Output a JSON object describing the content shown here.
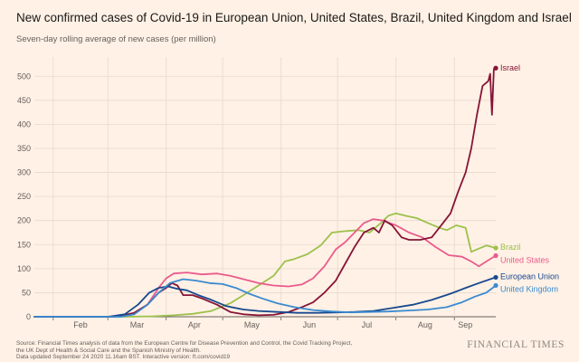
{
  "title": "New confirmed cases of Covid-19 in European Union, United States, Brazil, United Kingdom and Israel",
  "subtitle": "Seven-day rolling average of new cases (per million)",
  "footer": {
    "source": "Source: Financial Times analysis of data from the European Centre for Disease Prevention and Control, the Covid Tracking Project,",
    "source2": "the UK Dept of Health & Social Care and the Spanish Ministry of Health.",
    "updated": "Data updated September 24 2020 11.16am BST. Interactive version: ft.com/covid19"
  },
  "brand": "FINANCIAL TIMES",
  "chart_data": {
    "type": "line",
    "title": "New confirmed cases of Covid-19 in European Union, United States, Brazil, United Kingdom and Israel",
    "subtitle": "Seven-day rolling average of new cases (per million)",
    "x_ticks": [
      "Feb",
      "Mar",
      "Apr",
      "May",
      "Jun",
      "Jul",
      "Aug",
      "Sep"
    ],
    "y_ticks": [
      0,
      50,
      100,
      150,
      200,
      250,
      300,
      350,
      400,
      450,
      500
    ],
    "ylim": [
      0,
      540
    ],
    "xlim": [
      "2020-01-22",
      "2020-09-23"
    ],
    "grid": true,
    "legend": "inline-right",
    "series": [
      {
        "name": "Brazil",
        "color": "#9cc14b",
        "points": [
          [
            "2020-01-22",
            0
          ],
          [
            "2020-03-10",
            0
          ],
          [
            "2020-03-25",
            1
          ],
          [
            "2020-04-05",
            3
          ],
          [
            "2020-04-15",
            6
          ],
          [
            "2020-04-25",
            12
          ],
          [
            "2020-05-05",
            28
          ],
          [
            "2020-05-12",
            45
          ],
          [
            "2020-05-20",
            65
          ],
          [
            "2020-05-28",
            85
          ],
          [
            "2020-06-03",
            115
          ],
          [
            "2020-06-08",
            120
          ],
          [
            "2020-06-15",
            130
          ],
          [
            "2020-06-22",
            148
          ],
          [
            "2020-06-28",
            175
          ],
          [
            "2020-07-05",
            178
          ],
          [
            "2020-07-12",
            180
          ],
          [
            "2020-07-18",
            175
          ],
          [
            "2020-07-24",
            195
          ],
          [
            "2020-07-28",
            210
          ],
          [
            "2020-08-01",
            215
          ],
          [
            "2020-08-06",
            210
          ],
          [
            "2020-08-12",
            205
          ],
          [
            "2020-08-18",
            195
          ],
          [
            "2020-08-24",
            185
          ],
          [
            "2020-08-28",
            180
          ],
          [
            "2020-09-02",
            190
          ],
          [
            "2020-09-07",
            185
          ],
          [
            "2020-09-10",
            135
          ],
          [
            "2020-09-13",
            140
          ],
          [
            "2020-09-18",
            148
          ],
          [
            "2020-09-23",
            143
          ]
        ]
      },
      {
        "name": "United States",
        "color": "#ea5b8c",
        "points": [
          [
            "2020-01-22",
            0
          ],
          [
            "2020-03-05",
            0
          ],
          [
            "2020-03-15",
            5
          ],
          [
            "2020-03-22",
            25
          ],
          [
            "2020-03-28",
            60
          ],
          [
            "2020-04-01",
            80
          ],
          [
            "2020-04-05",
            90
          ],
          [
            "2020-04-12",
            92
          ],
          [
            "2020-04-20",
            88
          ],
          [
            "2020-04-28",
            90
          ],
          [
            "2020-05-05",
            85
          ],
          [
            "2020-05-12",
            78
          ],
          [
            "2020-05-20",
            70
          ],
          [
            "2020-05-28",
            65
          ],
          [
            "2020-06-05",
            63
          ],
          [
            "2020-06-12",
            67
          ],
          [
            "2020-06-18",
            80
          ],
          [
            "2020-06-24",
            105
          ],
          [
            "2020-06-30",
            140
          ],
          [
            "2020-07-05",
            155
          ],
          [
            "2020-07-10",
            175
          ],
          [
            "2020-07-15",
            195
          ],
          [
            "2020-07-20",
            203
          ],
          [
            "2020-07-25",
            200
          ],
          [
            "2020-08-01",
            190
          ],
          [
            "2020-08-08",
            175
          ],
          [
            "2020-08-15",
            165
          ],
          [
            "2020-08-22",
            145
          ],
          [
            "2020-08-29",
            128
          ],
          [
            "2020-09-05",
            125
          ],
          [
            "2020-09-10",
            115
          ],
          [
            "2020-09-14",
            105
          ],
          [
            "2020-09-18",
            115
          ],
          [
            "2020-09-23",
            127
          ]
        ]
      },
      {
        "name": "Israel",
        "color": "#861436",
        "points": [
          [
            "2020-01-22",
            0
          ],
          [
            "2020-03-05",
            0
          ],
          [
            "2020-03-15",
            8
          ],
          [
            "2020-03-22",
            25
          ],
          [
            "2020-03-28",
            50
          ],
          [
            "2020-04-01",
            60
          ],
          [
            "2020-04-04",
            70
          ],
          [
            "2020-04-07",
            65
          ],
          [
            "2020-04-10",
            45
          ],
          [
            "2020-04-15",
            45
          ],
          [
            "2020-04-20",
            38
          ],
          [
            "2020-04-28",
            25
          ],
          [
            "2020-05-05",
            10
          ],
          [
            "2020-05-12",
            5
          ],
          [
            "2020-05-20",
            3
          ],
          [
            "2020-05-28",
            4
          ],
          [
            "2020-06-05",
            10
          ],
          [
            "2020-06-12",
            20
          ],
          [
            "2020-06-18",
            30
          ],
          [
            "2020-06-24",
            50
          ],
          [
            "2020-06-30",
            75
          ],
          [
            "2020-07-05",
            110
          ],
          [
            "2020-07-10",
            145
          ],
          [
            "2020-07-15",
            175
          ],
          [
            "2020-07-20",
            185
          ],
          [
            "2020-07-23",
            175
          ],
          [
            "2020-07-26",
            200
          ],
          [
            "2020-07-30",
            190
          ],
          [
            "2020-08-04",
            165
          ],
          [
            "2020-08-08",
            160
          ],
          [
            "2020-08-14",
            160
          ],
          [
            "2020-08-20",
            165
          ],
          [
            "2020-08-26",
            195
          ],
          [
            "2020-08-30",
            215
          ],
          [
            "2020-09-03",
            260
          ],
          [
            "2020-09-07",
            300
          ],
          [
            "2020-09-10",
            350
          ],
          [
            "2020-09-13",
            420
          ],
          [
            "2020-09-16",
            480
          ],
          [
            "2020-09-19",
            490
          ],
          [
            "2020-09-20",
            505
          ],
          [
            "2020-09-21",
            420
          ],
          [
            "2020-09-22",
            515
          ],
          [
            "2020-09-23",
            517
          ]
        ]
      },
      {
        "name": "European Union",
        "color": "#17488d",
        "points": [
          [
            "2020-01-22",
            0
          ],
          [
            "2020-03-01",
            0
          ],
          [
            "2020-03-10",
            5
          ],
          [
            "2020-03-17",
            25
          ],
          [
            "2020-03-23",
            50
          ],
          [
            "2020-03-28",
            60
          ],
          [
            "2020-04-02",
            63
          ],
          [
            "2020-04-07",
            58
          ],
          [
            "2020-04-12",
            55
          ],
          [
            "2020-04-18",
            45
          ],
          [
            "2020-04-25",
            35
          ],
          [
            "2020-05-03",
            22
          ],
          [
            "2020-05-12",
            15
          ],
          [
            "2020-05-20",
            12
          ],
          [
            "2020-05-30",
            10
          ],
          [
            "2020-06-10",
            8
          ],
          [
            "2020-06-20",
            8
          ],
          [
            "2020-07-01",
            9
          ],
          [
            "2020-07-10",
            10
          ],
          [
            "2020-07-20",
            12
          ],
          [
            "2020-07-30",
            18
          ],
          [
            "2020-08-10",
            25
          ],
          [
            "2020-08-20",
            35
          ],
          [
            "2020-08-30",
            48
          ],
          [
            "2020-09-07",
            60
          ],
          [
            "2020-09-14",
            70
          ],
          [
            "2020-09-23",
            82
          ]
        ]
      },
      {
        "name": "United Kingdom",
        "color": "#3a8ad0",
        "points": [
          [
            "2020-01-22",
            0
          ],
          [
            "2020-03-08",
            0
          ],
          [
            "2020-03-15",
            5
          ],
          [
            "2020-03-22",
            25
          ],
          [
            "2020-03-28",
            50
          ],
          [
            "2020-04-03",
            70
          ],
          [
            "2020-04-10",
            78
          ],
          [
            "2020-04-17",
            75
          ],
          [
            "2020-04-24",
            70
          ],
          [
            "2020-05-01",
            68
          ],
          [
            "2020-05-08",
            60
          ],
          [
            "2020-05-15",
            48
          ],
          [
            "2020-05-22",
            38
          ],
          [
            "2020-05-30",
            28
          ],
          [
            "2020-06-08",
            20
          ],
          [
            "2020-06-18",
            14
          ],
          [
            "2020-06-28",
            11
          ],
          [
            "2020-07-08",
            9
          ],
          [
            "2020-07-18",
            10
          ],
          [
            "2020-07-28",
            11
          ],
          [
            "2020-08-08",
            13
          ],
          [
            "2020-08-18",
            15
          ],
          [
            "2020-08-28",
            20
          ],
          [
            "2020-09-05",
            30
          ],
          [
            "2020-09-12",
            42
          ],
          [
            "2020-09-18",
            50
          ],
          [
            "2020-09-23",
            65
          ]
        ]
      }
    ]
  }
}
